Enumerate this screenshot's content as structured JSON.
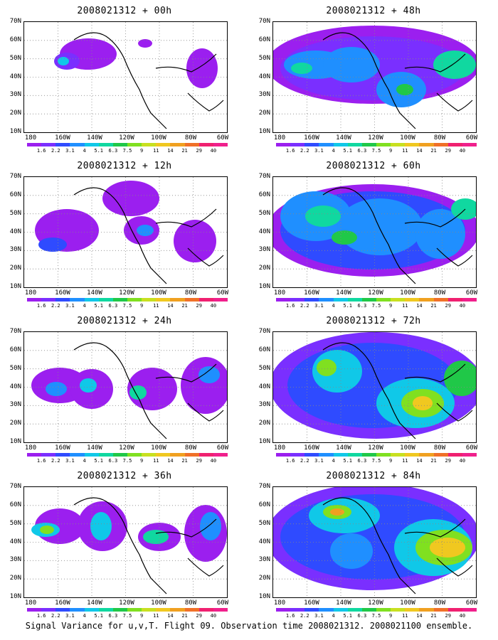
{
  "figure": {
    "caption": "Signal Variance for u,v,T. Flight 09. Observation time 2008021312. 2008021100 ensemble.",
    "lat_labels": [
      "70N",
      "60N",
      "50N",
      "40N",
      "30N",
      "20N",
      "10N"
    ],
    "lon_labels": [
      "180",
      "160W",
      "140W",
      "120W",
      "100W",
      "80W",
      "60W"
    ],
    "colorbar": {
      "labels": [
        "1.6",
        "2.2",
        "3.1",
        "4",
        "5.1",
        "6.3",
        "7.5",
        "9",
        "11",
        "14",
        "21",
        "29",
        "40"
      ],
      "colors": [
        "#9b1fef",
        "#7a2fff",
        "#2f4bff",
        "#1f8fff",
        "#10c8e8",
        "#10d8a0",
        "#20c848",
        "#80e020",
        "#c8e020",
        "#f0c820",
        "#f0a020",
        "#f07028",
        "#f02070",
        "#f0208c"
      ]
    }
  },
  "panels": [
    {
      "title": "2008021312 + 00h"
    },
    {
      "title": "2008021312 + 48h"
    },
    {
      "title": "2008021312 + 12h"
    },
    {
      "title": "2008021312 + 60h"
    },
    {
      "title": "2008021312 + 24h"
    },
    {
      "title": "2008021312 + 72h"
    },
    {
      "title": "2008021312 + 36h"
    },
    {
      "title": "2008021312 + 84h"
    }
  ]
}
